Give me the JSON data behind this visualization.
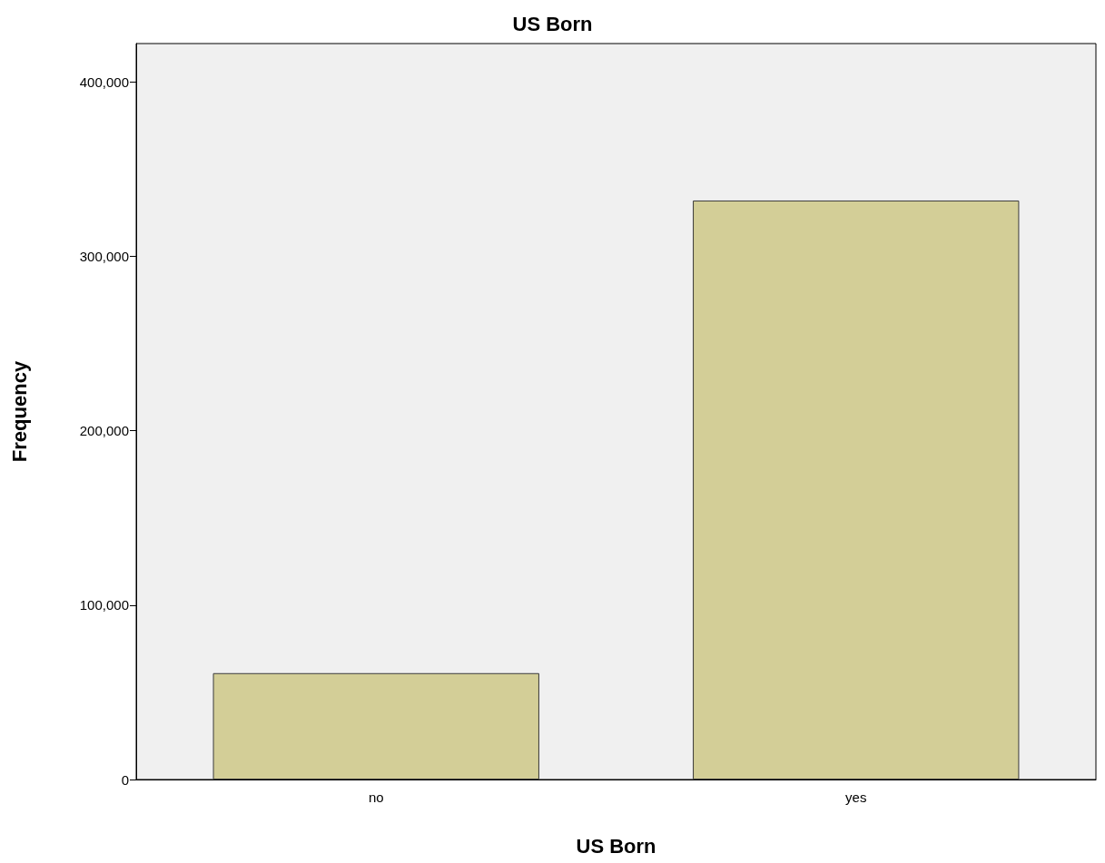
{
  "chart_data": {
    "type": "bar",
    "title": "US Born",
    "xlabel": "US Born",
    "ylabel": "Frequency",
    "categories": [
      "no",
      "yes"
    ],
    "values": [
      61000,
      332000
    ],
    "color": "#d3ce97",
    "ylim": [
      0,
      422000
    ],
    "yticks": [
      0,
      {
        "value": 100000,
        "label": "100,000"
      },
      {
        "value": 200000,
        "label": "200,000"
      },
      {
        "value": 300000,
        "label": "300,000"
      },
      {
        "value": 400000,
        "label": "400,000"
      }
    ],
    "grid": false
  }
}
